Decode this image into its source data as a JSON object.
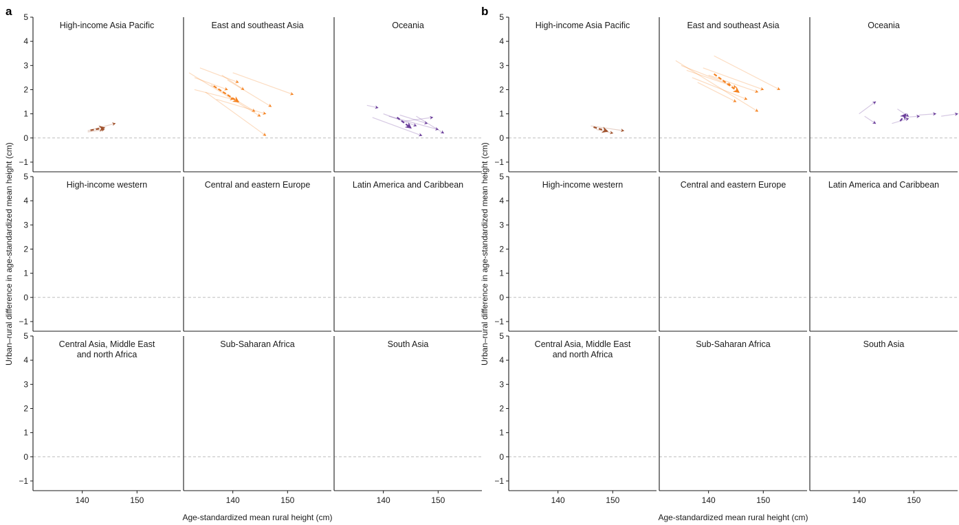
{
  "figure": {
    "xlabel": "Age-standardized mean rural height (cm)",
    "ylabel": "Urban–rural difference in age-standardized mean height (cm)",
    "ylim": [
      -1.4,
      5
    ],
    "yticks": [
      -1,
      0,
      1,
      2,
      3,
      4,
      5
    ],
    "xlim": [
      131,
      158
    ],
    "xticks": [
      140,
      150
    ],
    "colors": {
      "axis": "#1a1a1a",
      "zero_line": "#bdbdbd",
      "region": {
        "hi_asia_pacific": "#a0522d",
        "east_se_asia": "#f58220",
        "oceania": "#6a3d9a",
        "hi_western": "#6baed6",
        "ce_europe": "#1f78b4",
        "latam": "#33a02c",
        "camena": "#e31a1c",
        "ssa": "#fb6a6a",
        "south_asia": "#f5a623"
      }
    }
  },
  "chart_data": [
    {
      "id": "a",
      "letter": "a",
      "type": "line",
      "panels": [
        {
          "region": "hi_asia_pacific",
          "title": [
            "High-income Asia Pacific"
          ],
          "overall": [
            [
              141.5,
              0.32
            ],
            [
              144,
              0.42
            ]
          ],
          "countries": [
            [
              141,
              0.3,
              146,
              0.6
            ],
            [
              141,
              0.25,
              144,
              0.35
            ]
          ]
        },
        {
          "region": "east_se_asia",
          "title": [
            "East and southeast Asia"
          ],
          "overall": [
            [
              136.5,
              2.15
            ],
            [
              141,
              1.5
            ]
          ],
          "countries": [
            [
              132,
              2.7,
              145,
              0.9
            ],
            [
              133,
              2.5,
              139,
              2.0
            ],
            [
              134,
              2.9,
              141,
              2.3
            ],
            [
              140,
              2.7,
              151,
              1.8
            ],
            [
              136,
              2.2,
              144,
              1.1
            ],
            [
              135,
              1.9,
              146,
              0.1
            ],
            [
              137,
              1.6,
              146,
              1.0
            ],
            [
              138,
              2.6,
              142,
              2.0
            ],
            [
              133,
              2.0,
              140,
              1.6
            ],
            [
              139,
              2.4,
              147,
              1.3
            ]
          ]
        },
        {
          "region": "oceania",
          "title": [
            "Oceania"
          ],
          "overall": [
            [
              142.5,
              0.85
            ],
            [
              145,
              0.42
            ]
          ],
          "countries": [
            [
              137,
              1.35,
              139,
              1.25
            ],
            [
              138,
              0.85,
              147,
              0.1
            ],
            [
              141,
              0.9,
              150,
              0.35
            ],
            [
              144,
              0.7,
              149,
              0.85
            ],
            [
              146,
              0.9,
              151,
              0.2
            ],
            [
              140,
              1.0,
              146,
              0.5
            ],
            [
              143,
              0.95,
              148,
              0.6
            ]
          ]
        },
        {
          "region": "hi_western",
          "title": [
            "High-income western"
          ],
          "overall": [],
          "countries": []
        },
        {
          "region": "ce_europe",
          "title": [
            "Central and eastern Europe"
          ],
          "overall": [],
          "countries": []
        },
        {
          "region": "latam",
          "title": [
            "Latin America and Caribbean"
          ],
          "overall": [],
          "countries": []
        },
        {
          "region": "camena",
          "title": [
            "Central Asia, Middle East",
            "and north Africa"
          ],
          "overall": [],
          "countries": []
        },
        {
          "region": "ssa",
          "title": [
            "Sub-Saharan Africa"
          ],
          "overall": [],
          "countries": []
        },
        {
          "region": "south_asia",
          "title": [
            "South Asia"
          ],
          "overall": [],
          "countries": []
        }
      ]
    },
    {
      "id": "b",
      "letter": "b",
      "type": "line",
      "panels": [
        {
          "region": "hi_asia_pacific",
          "title": [
            "High-income Asia Pacific"
          ],
          "overall": [
            [
              146.5,
              0.45
            ],
            [
              149,
              0.28
            ]
          ],
          "countries": [
            [
              146,
              0.5,
              152,
              0.3
            ],
            [
              147,
              0.35,
              150,
              0.2
            ]
          ]
        },
        {
          "region": "east_se_asia",
          "title": [
            "East and southeast Asia"
          ],
          "overall": [
            [
              141,
              2.65
            ],
            [
              145.5,
              1.9
            ]
          ],
          "countries": [
            [
              134,
              3.2,
              149,
              1.1
            ],
            [
              135,
              3.0,
              144,
              2.2
            ],
            [
              136,
              2.8,
              145,
              2.1
            ],
            [
              137,
              2.5,
              147,
              1.6
            ],
            [
              139,
              2.9,
              150,
              2.0
            ],
            [
              141,
              3.4,
              153,
              2.0
            ],
            [
              138,
              2.3,
              145,
              1.5
            ],
            [
              140,
              2.6,
              149,
              1.9
            ]
          ]
        },
        {
          "region": "oceania",
          "title": [
            "Oceania"
          ],
          "overall": [
            [
              147.5,
              0.7
            ],
            [
              148.5,
              0.98
            ]
          ],
          "countries": [
            [
              140,
              1.0,
              143,
              1.5
            ],
            [
              141,
              0.9,
              143,
              0.6
            ],
            [
              147,
              1.2,
              149,
              0.9
            ],
            [
              151,
              0.95,
              154,
              1.0
            ],
            [
              155,
              0.9,
              158,
              1.0
            ],
            [
              148,
              0.85,
              151,
              0.9
            ],
            [
              146,
              0.6,
              149,
              0.8
            ]
          ]
        },
        {
          "region": "hi_western",
          "title": [
            "High-income western"
          ],
          "overall": [],
          "countries": []
        },
        {
          "region": "ce_europe",
          "title": [
            "Central and eastern Europe"
          ],
          "overall": [],
          "countries": []
        },
        {
          "region": "latam",
          "title": [
            "Latin America and Caribbean"
          ],
          "overall": [],
          "countries": []
        },
        {
          "region": "camena",
          "title": [
            "Central Asia, Middle East",
            "and north Africa"
          ],
          "overall": [],
          "countries": []
        },
        {
          "region": "ssa",
          "title": [
            "Sub-Saharan Africa"
          ],
          "overall": [],
          "countries": []
        },
        {
          "region": "south_asia",
          "title": [
            "South Asia"
          ],
          "overall": [],
          "countries": []
        }
      ]
    }
  ]
}
